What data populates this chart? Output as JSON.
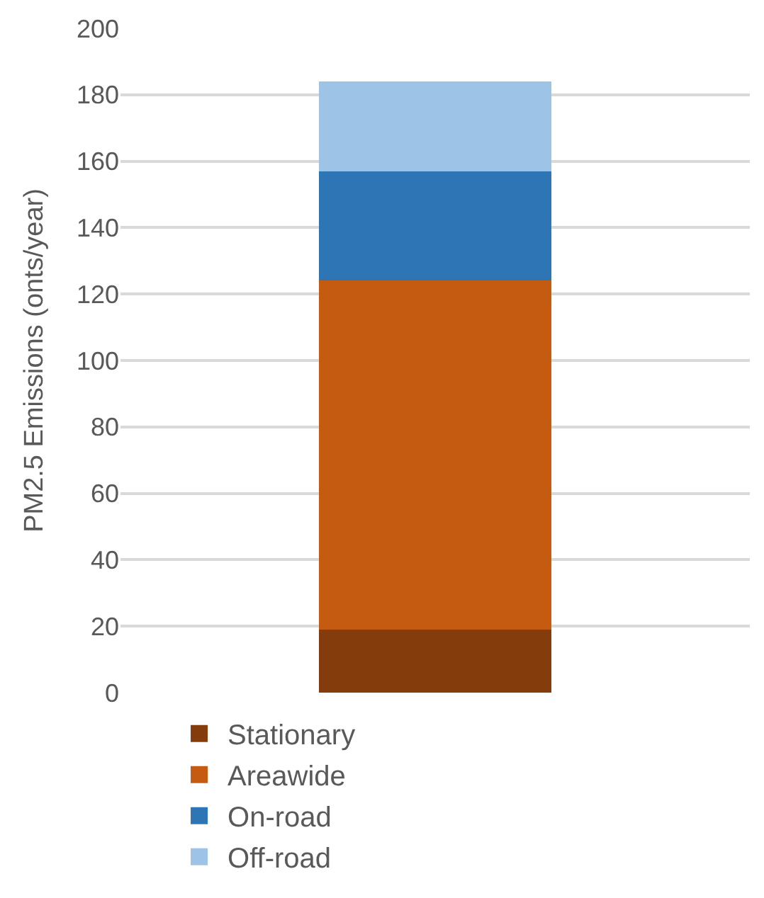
{
  "chart_data": {
    "type": "bar",
    "stacked": true,
    "ylabel": "PM2.5 Emissions (onts/year)",
    "categories": [
      null
    ],
    "series": [
      {
        "name": "Stationary",
        "color": "#843c0c",
        "values": [
          19
        ]
      },
      {
        "name": "Areawide",
        "color": "#c55a11",
        "values": [
          105
        ]
      },
      {
        "name": "On-road",
        "color": "#2e75b6",
        "values": [
          33
        ]
      },
      {
        "name": "Off-road",
        "color": "#9dc3e6",
        "values": [
          27
        ]
      }
    ],
    "ylim": [
      0,
      200
    ],
    "yticks": [
      0,
      20,
      40,
      60,
      80,
      100,
      120,
      140,
      160,
      180,
      200
    ],
    "grid": "y",
    "legend": "bottom"
  }
}
